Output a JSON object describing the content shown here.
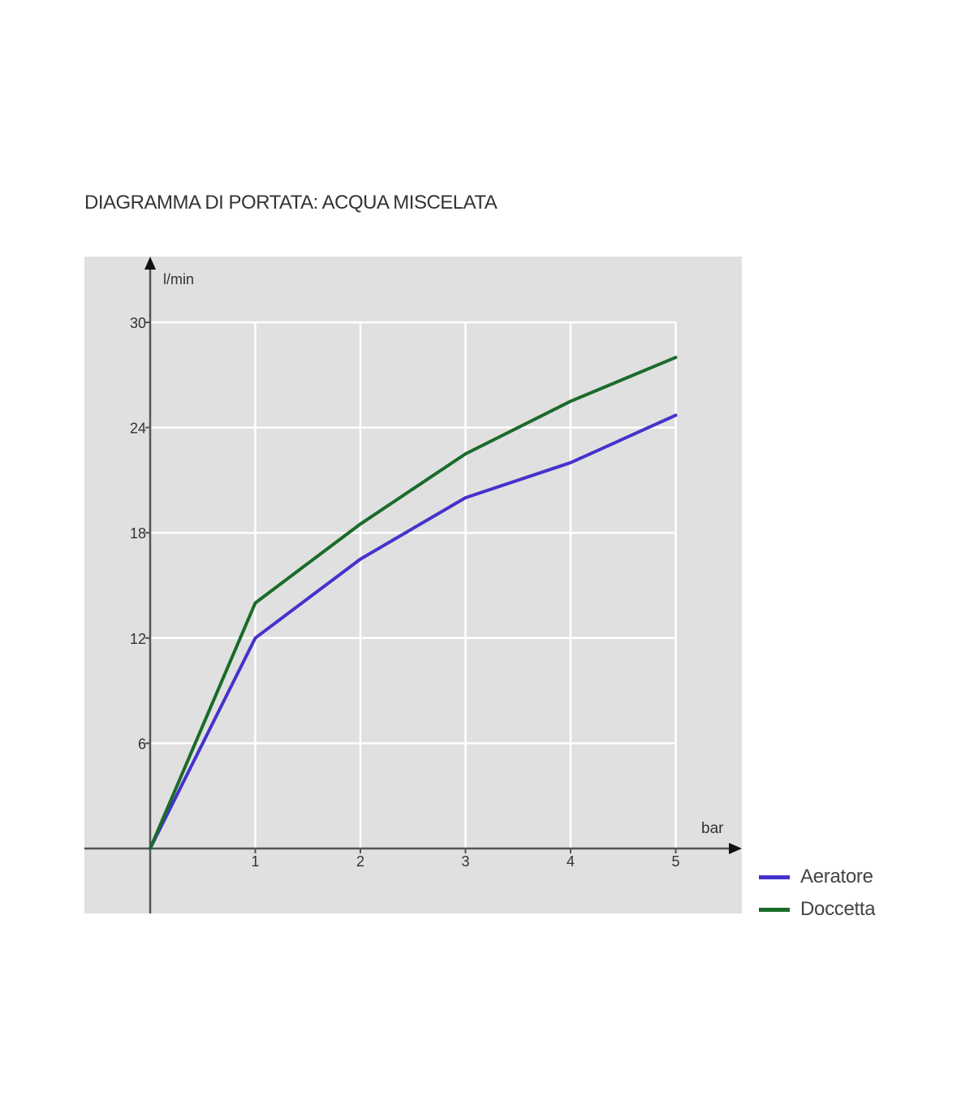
{
  "title": "DIAGRAMMA DI PORTATA: ACQUA MISCELATA",
  "chart_data": {
    "type": "line",
    "title": "DIAGRAMMA DI PORTATA: ACQUA MISCELATA",
    "xlabel": "bar",
    "ylabel": "l/min",
    "x": [
      0,
      1,
      2,
      3,
      4,
      5
    ],
    "x_ticks": [
      "1",
      "2",
      "3",
      "4",
      "5"
    ],
    "y_ticks": [
      "6",
      "12",
      "18",
      "24",
      "30"
    ],
    "xlim": [
      0,
      5
    ],
    "ylim": [
      0,
      30
    ],
    "grid": true,
    "legend_position": "bottom-right, outside plot",
    "series": [
      {
        "name": "Aeratore",
        "color": "#4433cc",
        "values": [
          0,
          12,
          16.5,
          20,
          22,
          24.7
        ]
      },
      {
        "name": "Doccetta",
        "color": "#1a6b2a",
        "values": [
          0,
          14,
          18.5,
          22.5,
          25.5,
          28
        ]
      }
    ]
  }
}
